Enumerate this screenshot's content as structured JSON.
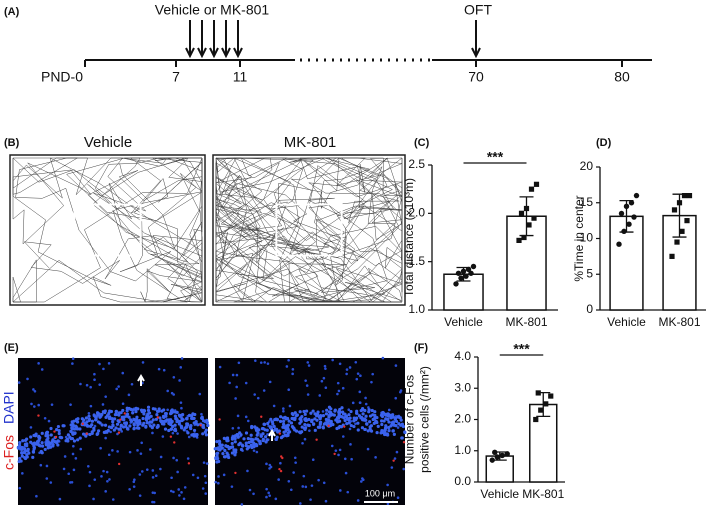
{
  "panels": [
    "(A)",
    "(B)",
    "(C)",
    "(D)",
    "(E)",
    "(F)"
  ],
  "timeline": {
    "treatment": "Vehicle or MK-801",
    "test": "OFT",
    "ticks": [
      "PND-0",
      "7",
      "11",
      "70",
      "80"
    ]
  },
  "tracks": {
    "titles": [
      "Vehicle",
      "MK-801"
    ]
  },
  "staining": {
    "markers": [
      "c-Fos",
      "DAPI"
    ],
    "scale": "100 μm"
  },
  "chart_data": [
    {
      "type": "bar",
      "ylabel": [
        "Total distance (×10³m)"
      ],
      "categories": [
        "Vehicle",
        "MK-801"
      ],
      "values": [
        1.37,
        1.97
      ],
      "errors": [
        0.07,
        0.2
      ],
      "points": [
        [
          1.27,
          1.33,
          1.35,
          1.38,
          1.38,
          1.4,
          1.42,
          1.45
        ],
        [
          1.72,
          1.75,
          1.88,
          1.95,
          2.0,
          2.05,
          2.25,
          2.3
        ]
      ],
      "significance": "***",
      "color": "#ffffff",
      "ylim": [
        1.0,
        2.5
      ],
      "yticks": [
        {
          "value": 1.0,
          "label": "1.0"
        },
        {
          "value": 1.5,
          "label": "1.5"
        },
        {
          "value": 2.0,
          "label": "2.0"
        },
        {
          "value": 2.5,
          "label": "2.5"
        }
      ]
    },
    {
      "type": "bar",
      "ylabel": [
        "%Time in center"
      ],
      "categories": [
        "Vehicle",
        "MK-801"
      ],
      "values": [
        13.1,
        13.2
      ],
      "errors": [
        2.2,
        3.0
      ],
      "points": [
        [
          9.2,
          11,
          12,
          13,
          13.5,
          14.5,
          15,
          16
        ],
        [
          7.5,
          9.5,
          11,
          12.5,
          14,
          15,
          16,
          16
        ]
      ],
      "color": "#ffffff",
      "ylim": [
        0,
        20
      ],
      "yticks": [
        0,
        5,
        10,
        15,
        20
      ]
    },
    {
      "type": "bar",
      "ylabel": [
        "Number of c-Fos",
        "positive cells (/mm²)"
      ],
      "categories": [
        "Vehicle",
        "MK-801"
      ],
      "values": [
        0.83,
        2.48
      ],
      "errors": [
        0.13,
        0.38
      ],
      "points": [
        [
          0.7,
          0.8,
          0.85,
          0.9,
          0.95
        ],
        [
          2.0,
          2.3,
          2.5,
          2.75,
          2.85
        ]
      ],
      "significance": "***",
      "color": "#ffffff",
      "ylim": [
        0,
        4
      ],
      "yticks": [
        {
          "value": 0,
          "label": "0.0"
        },
        {
          "value": 1,
          "label": "1.0"
        },
        {
          "value": 2,
          "label": "2.0"
        },
        {
          "value": 3,
          "label": "3.0"
        },
        {
          "value": 4,
          "label": "4.0"
        }
      ]
    }
  ]
}
